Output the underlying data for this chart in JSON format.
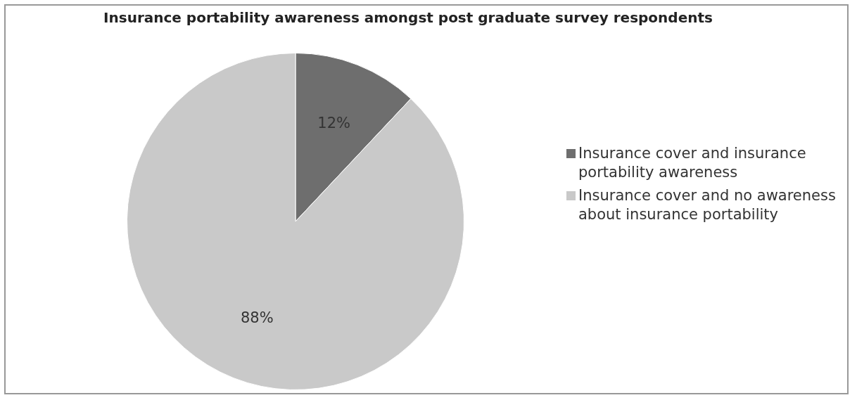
{
  "chart_data": {
    "type": "pie",
    "title": "Insurance portability awareness amongst post graduate survey respondents",
    "categories": [
      "Insurance cover and insurance portability awareness",
      "Insurance cover and no awareness about insurance portability"
    ],
    "values": [
      12,
      88
    ],
    "colors": [
      "#6e6e6e",
      "#c9c9c9"
    ],
    "value_labels": [
      "12%",
      "88%"
    ],
    "legend": "right"
  }
}
